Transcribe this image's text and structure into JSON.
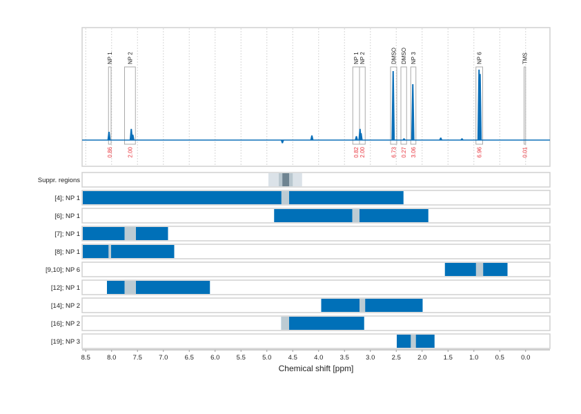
{
  "chart_data": [
    {
      "type": "line",
      "panel": "spectrum",
      "xlabel": "",
      "xlim": [
        8.57,
        -0.47
      ],
      "grid": true,
      "line_color": "#0b6fb8",
      "integral_color": "#e8313a",
      "peaks": [
        {
          "ppm": 8.05,
          "intensity": 0.11
        },
        {
          "ppm": 7.62,
          "intensity": 0.15
        },
        {
          "ppm": 7.59,
          "intensity": 0.07
        },
        {
          "ppm": 4.7,
          "intensity": -0.04
        },
        {
          "ppm": 4.13,
          "intensity": 0.06
        },
        {
          "ppm": 3.27,
          "intensity": 0.05
        },
        {
          "ppm": 3.2,
          "intensity": 0.15
        },
        {
          "ppm": 3.18,
          "intensity": 0.09
        },
        {
          "ppm": 2.56,
          "intensity": 0.94
        },
        {
          "ppm": 2.35,
          "intensity": 0.02
        },
        {
          "ppm": 2.18,
          "intensity": 0.76
        },
        {
          "ppm": 1.64,
          "intensity": 0.03
        },
        {
          "ppm": 1.23,
          "intensity": 0.02
        },
        {
          "ppm": 0.9,
          "intensity": 0.96
        },
        {
          "ppm": 0.88,
          "intensity": 0.9
        }
      ],
      "regions": [
        {
          "label": "NP 1",
          "from": 8.06,
          "to": 8.01,
          "integral": "0.86"
        },
        {
          "label": "NP 2",
          "from": 7.75,
          "to": 7.54,
          "integral": "2.00"
        },
        {
          "label": "NP 1",
          "from": 3.34,
          "to": 3.21,
          "integral": "0.82"
        },
        {
          "label": "NP 2",
          "from": 3.21,
          "to": 3.1,
          "integral": "2.00"
        },
        {
          "label": "DMSO",
          "from": 2.61,
          "to": 2.49,
          "integral": "6.73"
        },
        {
          "label": "DMSO",
          "from": 2.41,
          "to": 2.3,
          "integral": "0.27"
        },
        {
          "label": "NP 3",
          "from": 2.22,
          "to": 2.12,
          "integral": "3.06"
        },
        {
          "label": "NP 6",
          "from": 0.96,
          "to": 0.83,
          "integral": "6.96"
        },
        {
          "label": "TMS",
          "from": 0.03,
          "to": 0.0,
          "integral": "0.01"
        }
      ]
    },
    {
      "type": "bar",
      "panel": "regions",
      "xlabel": "Chemical shift [ppm]",
      "xlim": [
        8.57,
        -0.47
      ],
      "xticks": [
        "8.5",
        "8.0",
        "7.5",
        "7.0",
        "6.5",
        "6.0",
        "5.5",
        "5.0",
        "4.5",
        "4.0",
        "3.5",
        "3.0",
        "2.5",
        "2.0",
        "1.5",
        "1.0",
        "0.5",
        "0.0"
      ],
      "bar_color": "#0070b8",
      "highlight_color": "#bccbd3",
      "suppressed": {
        "label": "Suppr. regions",
        "bands": [
          {
            "from": 4.97,
            "to": 4.32,
            "color": "#dbe2e8"
          },
          {
            "from": 4.77,
            "to": 4.5,
            "color": "#b9c7cf"
          },
          {
            "from": 4.7,
            "to": 4.57,
            "color": "#6f8491"
          }
        ]
      },
      "rows": [
        {
          "label": "[4]; NP 1",
          "from": 8.57,
          "to": 2.36,
          "hl_from": 4.72,
          "hl_to": 4.57
        },
        {
          "label": "[6]; NP 1",
          "from": 4.86,
          "to": 1.88,
          "hl_from": 3.35,
          "hl_to": 3.21
        },
        {
          "label": "[7]; NP 1",
          "from": 8.57,
          "to": 6.91,
          "hl_from": 7.75,
          "hl_to": 7.53
        },
        {
          "label": "[8]; NP 1",
          "from": 8.57,
          "to": 6.79,
          "hl_from": 8.06,
          "hl_to": 8.01
        },
        {
          "label": "[9,10]; NP 6",
          "from": 1.56,
          "to": 0.35,
          "hl_from": 0.96,
          "hl_to": 0.82
        },
        {
          "label": "[12]; NP 1",
          "from": 8.09,
          "to": 6.1,
          "hl_from": 7.75,
          "hl_to": 7.53
        },
        {
          "label": "[14]; NP 2",
          "from": 3.95,
          "to": 1.99,
          "hl_from": 3.21,
          "hl_to": 3.1
        },
        {
          "label": "[16]; NP 2",
          "from": 4.72,
          "to": 3.12,
          "hl_from": 4.72,
          "hl_to": 4.57
        },
        {
          "label": "[19]; NP 3",
          "from": 2.49,
          "to": 1.76,
          "hl_from": 2.22,
          "hl_to": 2.12
        }
      ]
    }
  ]
}
